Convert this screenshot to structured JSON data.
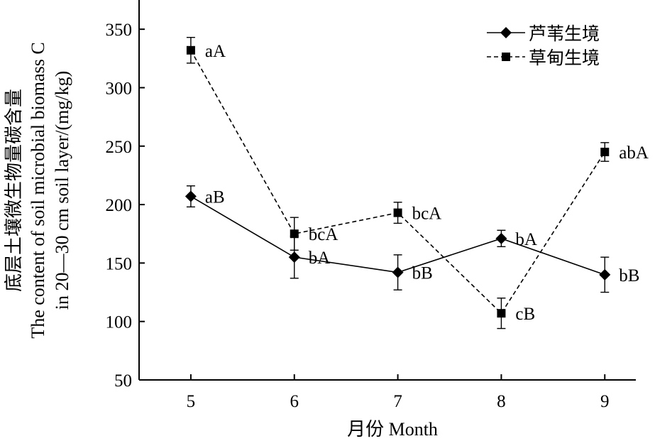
{
  "chart_data": {
    "type": "line",
    "x": [
      5,
      6,
      7,
      8,
      9
    ],
    "xlabel": "月份 Month",
    "ylabel_lines": [
      "底层土壤微生物量碳含量",
      "The content of soil microbial biomass C",
      "in 20—30 cm soil layer/(mg/kg)"
    ],
    "xlim": [
      4.5,
      9.3
    ],
    "ylim": [
      50,
      375
    ],
    "x_ticks": [
      "5",
      "6",
      "7",
      "8",
      "9"
    ],
    "y_ticks": [
      "50",
      "100",
      "150",
      "200",
      "250",
      "300",
      "350"
    ],
    "y_tick_values": [
      50,
      100,
      150,
      200,
      250,
      300,
      350
    ],
    "grid": false,
    "legend_position": "top-right",
    "series": [
      {
        "name": "芦苇生境",
        "marker": "diamond",
        "line_style": "solid",
        "values": [
          207,
          155,
          142,
          171,
          140
        ],
        "errors": [
          9,
          18,
          15,
          7,
          15
        ],
        "labels": [
          "aB",
          "bA",
          "bB",
          "bA",
          "bB"
        ]
      },
      {
        "name": "草甸生境",
        "marker": "square",
        "line_style": "dashed",
        "values": [
          332,
          175,
          193,
          107,
          245
        ],
        "errors": [
          11,
          14,
          9,
          13,
          8
        ],
        "labels": [
          "aA",
          "bcA",
          "bcA",
          "cB",
          "abA"
        ]
      }
    ]
  }
}
